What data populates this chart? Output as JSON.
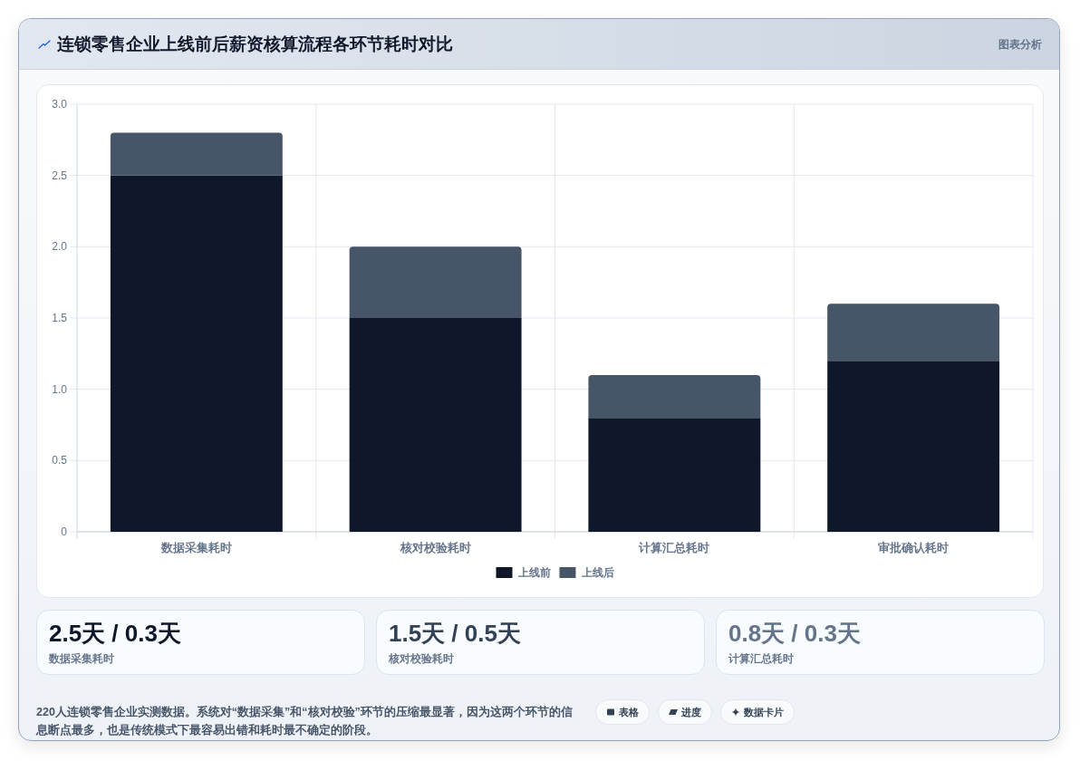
{
  "chart_data": [
    {
      "type": "bar",
      "title": "连锁零售企业上线前后薪资核算流程各环节耗时对比",
      "categories": [
        "数据采集耗时",
        "核对校验耗时",
        "计算汇总耗时",
        "审批确认耗时"
      ],
      "series": [
        {
          "name": "上线前",
          "color": "#0f172a",
          "values": [
            2.5,
            1.5,
            0.8,
            1.2
          ]
        },
        {
          "name": "上线后",
          "color": "#475569",
          "values": [
            0.3,
            0.5,
            0.3,
            0.4
          ]
        }
      ],
      "stacked": true,
      "ylim": [
        0,
        3
      ],
      "yticks": [
        0,
        0.5,
        {
          "value": 1,
          "label": "1.0"
        },
        1.5,
        {
          "value": 2,
          "label": "2.0"
        },
        2.5,
        {
          "value": 3,
          "label": "3.0"
        }
      ],
      "grid": true,
      "legend": "bottom",
      "annotations": [
        "图表分析",
        "220人连锁零售企业实测数据。系统对“数据采集”和“核对校验”环节的压缩最显著，因为这两个环节的信息断点最多，也是传统模式下最容易出错和耗时最不确定的阶段。",
        "表格",
        "进度",
        "数据卡片"
      ]
    },
    {
      "type": "other",
      "title": "2.5天 / 0.3天",
      "subtitle": "数据采集耗时",
      "color": "#0f172a"
    },
    {
      "type": "other",
      "title": "1.5天 / 0.5天",
      "subtitle": "核对校验耗时",
      "color": "#334155"
    },
    {
      "type": "other",
      "title": "0.8天 / 0.3天",
      "subtitle": "计算汇总耗时",
      "color": "#64748b"
    }
  ]
}
